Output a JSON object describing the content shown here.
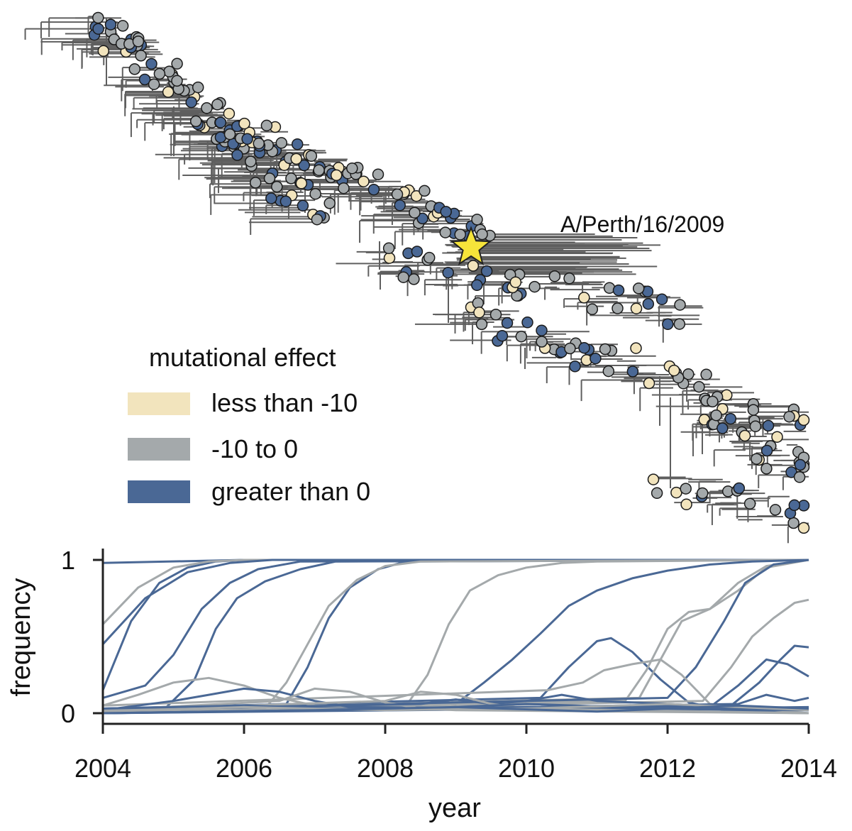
{
  "colors": {
    "less_than_neg10": "#f2e4bd",
    "neg10_to_0": "#a4a9ab",
    "greater_than_0": "#4a6895",
    "branch": "#5f5f5f",
    "node_outline": "#1a1a1a",
    "star": "#f6e43a",
    "axis": "#222222"
  },
  "tree": {
    "annotation_label": "A/Perth/16/2009",
    "annotation_marker": "star-icon",
    "annotation_year": 2009.25
  },
  "legend": {
    "title": "mutational effect",
    "items": [
      {
        "label": "less than -10",
        "color_key": "less_than_neg10"
      },
      {
        "label": "-10 to 0",
        "color_key": "neg10_to_0"
      },
      {
        "label": "greater than 0",
        "color_key": "greater_than_0"
      }
    ]
  },
  "chart_data": {
    "type": "line",
    "title": "",
    "xlabel": "year",
    "ylabel": "frequency",
    "xlim": [
      2004,
      2014
    ],
    "ylim": [
      0,
      1
    ],
    "x_ticks": [
      2004,
      2006,
      2008,
      2010,
      2012,
      2014
    ],
    "x_tick_labels": [
      "2004",
      "2006",
      "2008",
      "2010",
      "2012",
      "2014"
    ],
    "y_ticks": [
      0,
      1
    ],
    "y_tick_labels": [
      "0",
      "1"
    ],
    "grid": false,
    "series": [
      {
        "group": "greater_than_0",
        "x": [
          2004,
          2006,
          2014
        ],
        "y": [
          0.98,
          1.0,
          1.0
        ]
      },
      {
        "group": "greater_than_0",
        "x": [
          2004,
          2004.4,
          2004.8,
          2005.2,
          2005.6,
          2006,
          2014
        ],
        "y": [
          0.15,
          0.6,
          0.85,
          0.95,
          0.99,
          1.0,
          1.0
        ]
      },
      {
        "group": "neg10_to_0",
        "x": [
          2004,
          2004.5,
          2005,
          2005.5,
          2006,
          2014
        ],
        "y": [
          0.58,
          0.82,
          0.95,
          0.99,
          1.0,
          1.0
        ]
      },
      {
        "group": "greater_than_0",
        "x": [
          2004,
          2004.6,
          2005.2,
          2005.8,
          2006.4,
          2014
        ],
        "y": [
          0.45,
          0.75,
          0.92,
          0.98,
          1.0,
          1.0
        ]
      },
      {
        "group": "greater_than_0",
        "x": [
          2004,
          2004.6,
          2005.0,
          2005.4,
          2005.8,
          2006.2,
          2006.8,
          2014
        ],
        "y": [
          0.1,
          0.18,
          0.38,
          0.68,
          0.85,
          0.94,
          0.99,
          1.0
        ]
      },
      {
        "group": "greater_than_0",
        "x": [
          2004,
          2004.9,
          2005.3,
          2005.6,
          2005.9,
          2006.3,
          2006.8,
          2007.3,
          2014
        ],
        "y": [
          0.02,
          0.04,
          0.22,
          0.55,
          0.75,
          0.86,
          0.94,
          0.99,
          1.0
        ]
      },
      {
        "group": "greater_than_0",
        "x": [
          2004,
          2006.6,
          2006.9,
          2007.2,
          2007.5,
          2007.9,
          2008.3,
          2014
        ],
        "y": [
          0.02,
          0.06,
          0.3,
          0.62,
          0.82,
          0.94,
          0.99,
          1.0
        ]
      },
      {
        "group": "neg10_to_0",
        "x": [
          2004,
          2006.3,
          2006.6,
          2006.9,
          2007.2,
          2007.6,
          2008.0,
          2008.5,
          2014
        ],
        "y": [
          0.0,
          0.03,
          0.2,
          0.45,
          0.7,
          0.87,
          0.96,
          0.99,
          1.0
        ]
      },
      {
        "group": "neg10_to_0",
        "x": [
          2004,
          2008.3,
          2008.6,
          2008.9,
          2009.2,
          2009.6,
          2010.0,
          2010.5,
          2011.0,
          2014
        ],
        "y": [
          0.02,
          0.05,
          0.25,
          0.58,
          0.8,
          0.9,
          0.95,
          0.98,
          0.99,
          1.0
        ]
      },
      {
        "group": "greater_than_0",
        "x": [
          2004,
          2009.0,
          2009.4,
          2009.8,
          2010.2,
          2010.6,
          2011.0,
          2011.5,
          2012.0,
          2012.6,
          2013.2,
          2014
        ],
        "y": [
          0.03,
          0.06,
          0.2,
          0.35,
          0.52,
          0.7,
          0.8,
          0.88,
          0.93,
          0.97,
          0.99,
          1.0
        ]
      },
      {
        "group": "greater_than_0",
        "x": [
          2004,
          2010.2,
          2010.6,
          2011.0,
          2011.2,
          2011.5,
          2011.9,
          2012.3,
          2012.8,
          2014
        ],
        "y": [
          0.03,
          0.1,
          0.3,
          0.47,
          0.49,
          0.4,
          0.22,
          0.07,
          0.02,
          0.0
        ]
      },
      {
        "group": "neg10_to_0",
        "x": [
          2004,
          2011.4,
          2011.7,
          2012.0,
          2012.3,
          2012.6,
          2013.0,
          2013.4,
          2014
        ],
        "y": [
          0.02,
          0.08,
          0.28,
          0.55,
          0.66,
          0.68,
          0.85,
          0.96,
          1.0
        ]
      },
      {
        "group": "neg10_to_0",
        "x": [
          2004,
          2011.6,
          2011.9,
          2012.2,
          2012.6,
          2013.0,
          2013.4,
          2014
        ],
        "y": [
          0.02,
          0.1,
          0.35,
          0.6,
          0.68,
          0.8,
          0.95,
          1.0
        ]
      },
      {
        "group": "greater_than_0",
        "x": [
          2004,
          2012.0,
          2012.4,
          2012.8,
          2013.1,
          2013.5,
          2014
        ],
        "y": [
          0.02,
          0.1,
          0.3,
          0.6,
          0.85,
          0.97,
          1.0
        ]
      },
      {
        "group": "neg10_to_0",
        "x": [
          2004,
          2012.5,
          2012.9,
          2013.2,
          2013.5,
          2013.8,
          2014
        ],
        "y": [
          0.0,
          0.08,
          0.3,
          0.5,
          0.62,
          0.72,
          0.74
        ]
      },
      {
        "group": "greater_than_0",
        "x": [
          2004,
          2012.9,
          2013.3,
          2013.6,
          2013.8,
          2014
        ],
        "y": [
          0.0,
          0.05,
          0.2,
          0.35,
          0.44,
          0.43
        ]
      },
      {
        "group": "greater_than_0",
        "x": [
          2004,
          2012.6,
          2013.0,
          2013.4,
          2013.7,
          2014
        ],
        "y": [
          0.0,
          0.04,
          0.18,
          0.35,
          0.32,
          0.24
        ]
      },
      {
        "group": "neg10_to_0",
        "x": [
          2004,
          2010.3,
          2010.8,
          2011.1,
          2011.5,
          2011.9,
          2012.2,
          2012.6,
          2014
        ],
        "y": [
          0.05,
          0.15,
          0.2,
          0.28,
          0.32,
          0.35,
          0.25,
          0.06,
          0.0
        ]
      },
      {
        "group": "neg10_to_0",
        "x": [
          2004,
          2004.5,
          2005.0,
          2005.5,
          2006.0,
          2006.5,
          2007.0,
          2014
        ],
        "y": [
          0.05,
          0.12,
          0.2,
          0.23,
          0.18,
          0.1,
          0.05,
          0.02
        ]
      },
      {
        "group": "greater_than_0",
        "x": [
          2004,
          2005.0,
          2005.5,
          2006.0,
          2006.5,
          2007.0,
          2007.5,
          2014
        ],
        "y": [
          0.02,
          0.08,
          0.12,
          0.16,
          0.14,
          0.08,
          0.04,
          0.02
        ]
      },
      {
        "group": "neg10_to_0",
        "x": [
          2004,
          2006.5,
          2007.0,
          2007.5,
          2008.0,
          2008.5,
          2009.0,
          2014
        ],
        "y": [
          0.02,
          0.08,
          0.16,
          0.14,
          0.07,
          0.03,
          0.02,
          0.0
        ]
      },
      {
        "group": "greater_than_0",
        "x": [
          2004,
          2008.5,
          2009.0,
          2009.5,
          2010.0,
          2010.5,
          2011.0,
          2014
        ],
        "y": [
          0.02,
          0.06,
          0.09,
          0.06,
          0.08,
          0.12,
          0.08,
          0.02
        ]
      },
      {
        "group": "neg10_to_0",
        "x": [
          2004,
          2008.0,
          2008.5,
          2009.0,
          2009.5,
          2010.0,
          2014
        ],
        "y": [
          0.02,
          0.08,
          0.14,
          0.12,
          0.06,
          0.03,
          0.0
        ]
      },
      {
        "group": "greater_than_0",
        "x": [
          2004,
          2013.0,
          2013.4,
          2013.8,
          2014
        ],
        "y": [
          0.0,
          0.06,
          0.12,
          0.08,
          0.1
        ]
      },
      {
        "group": "greater_than_0",
        "x": [
          2004,
          2006,
          2008,
          2010,
          2012,
          2014
        ],
        "y": [
          0.03,
          0.05,
          0.02,
          0.06,
          0.03,
          0.04
        ]
      },
      {
        "group": "neg10_to_0",
        "x": [
          2004,
          2006,
          2008,
          2010,
          2012,
          2014
        ],
        "y": [
          0.01,
          0.04,
          0.02,
          0.03,
          0.06,
          0.02
        ]
      },
      {
        "group": "greater_than_0",
        "x": [
          2004,
          2007,
          2009,
          2011,
          2013,
          2014
        ],
        "y": [
          0.0,
          0.02,
          0.04,
          0.01,
          0.05,
          0.03
        ]
      }
    ]
  }
}
